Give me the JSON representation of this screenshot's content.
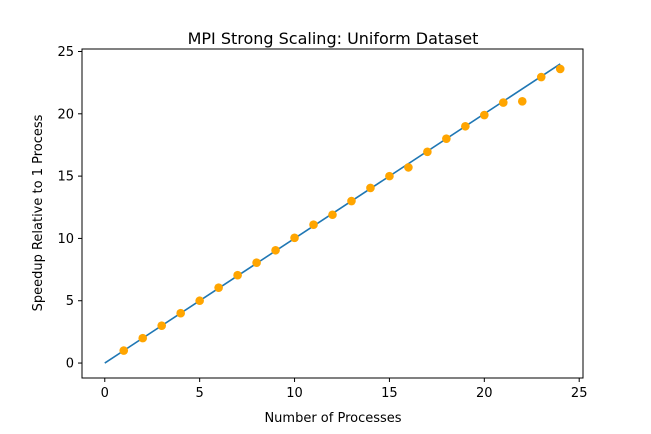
{
  "chart_data": {
    "type": "scatter",
    "title": "MPI Strong Scaling: Uniform Dataset",
    "xlabel": "Number of Processes",
    "ylabel": "Speedup Relative to 1 Process",
    "xlim": [
      -1.2,
      25.2
    ],
    "ylim": [
      -1.2,
      25.2
    ],
    "xticks": [
      0,
      5,
      10,
      15,
      20,
      25
    ],
    "yticks": [
      0,
      5,
      10,
      15,
      20,
      25
    ],
    "xtick_labels": [
      "0",
      "5",
      "10",
      "15",
      "20",
      "25"
    ],
    "ytick_labels": [
      "0",
      "5",
      "10",
      "15",
      "20",
      "25"
    ],
    "grid": false,
    "series": [
      {
        "kind": "line",
        "color": "#1f77b4",
        "x": [
          0,
          24
        ],
        "y": [
          0,
          24
        ]
      },
      {
        "kind": "scatter",
        "color": "#ffa500",
        "x": [
          1,
          2,
          3,
          4,
          5,
          6,
          7,
          8,
          9,
          10,
          11,
          12,
          13,
          14,
          15,
          16,
          17,
          18,
          19,
          20,
          21,
          22,
          23,
          24
        ],
        "y": [
          1.0,
          2.0,
          3.0,
          4.0,
          5.0,
          6.05,
          7.05,
          8.05,
          9.05,
          10.05,
          11.1,
          11.9,
          13.0,
          14.05,
          15.0,
          15.7,
          16.95,
          18.0,
          19.0,
          19.9,
          20.9,
          21.0,
          22.95,
          23.6
        ]
      }
    ]
  }
}
